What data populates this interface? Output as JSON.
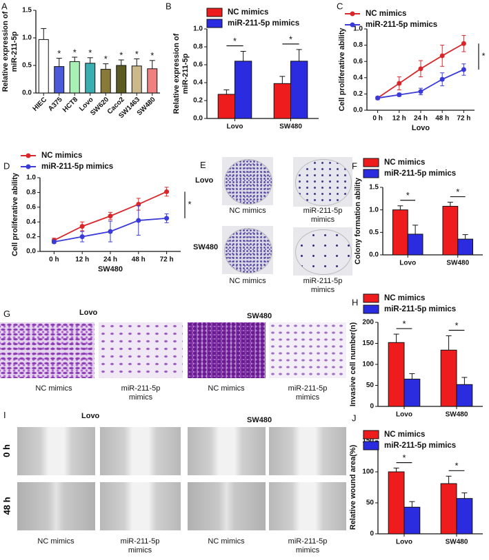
{
  "chart_data": [
    {
      "panel": "A",
      "type": "bar",
      "ylabel": [
        "Relative expression of",
        "miR-211-5p"
      ],
      "categories": [
        "HIEC",
        "A375",
        "HCT8",
        "Lovo",
        "SW620",
        "Caco2",
        "SW1463",
        "SW480"
      ],
      "values": [
        0.97,
        0.48,
        0.57,
        0.54,
        0.43,
        0.5,
        0.49,
        0.44
      ],
      "errors": [
        0.2,
        0.15,
        0.08,
        0.1,
        0.1,
        0.1,
        0.13,
        0.15
      ],
      "colors": [
        "#ffffff",
        "#4a5ad8",
        "#a8f0b4",
        "#3aaeb0",
        "#8a7a3a",
        "#5c5c22",
        "#cbb98c",
        "#f08080"
      ],
      "annotations": [
        null,
        "*",
        "*",
        "*",
        "*",
        "*",
        "*",
        "*"
      ],
      "ylim": [
        0,
        1.5
      ],
      "yticks": [
        {
          "value": 0,
          "label": "0.0"
        },
        0.5,
        {
          "value": 1,
          "label": "1.0"
        },
        1.5
      ]
    },
    {
      "panel": "B",
      "type": "grouped-bar",
      "ylabel": [
        "Relative expression of",
        "miR-211-5p"
      ],
      "categories": [
        "Lovo",
        "SW480"
      ],
      "series": [
        {
          "name": "NC mimics",
          "color": "#ee1c1c",
          "values": [
            0.27,
            0.39
          ],
          "errors": [
            0.05,
            0.08
          ]
        },
        {
          "name": "miR-211-5p mimics",
          "color": "#2b2be0",
          "values": [
            0.64,
            0.64
          ],
          "errors": [
            0.11,
            0.13
          ]
        }
      ],
      "annotations": [
        "*",
        "*"
      ],
      "ylim": [
        0,
        1
      ],
      "yticks": [
        {
          "value": 0,
          "label": "0.0"
        },
        0.2,
        0.4,
        0.6,
        0.8,
        {
          "value": 1,
          "label": "1.0"
        }
      ]
    },
    {
      "panel": "C",
      "type": "line",
      "ylabel": "Cell proliferative ability",
      "xlabel": "Lovo",
      "categories": [
        "0 h",
        "12 h",
        "24 h",
        "48 h",
        "72 h"
      ],
      "series": [
        {
          "name": "NC mimics",
          "color": "#d8262a",
          "values": [
            0.15,
            0.33,
            0.51,
            0.67,
            0.82
          ],
          "errors": [
            0.02,
            0.08,
            0.1,
            0.13,
            0.1
          ]
        },
        {
          "name": "miR-211-5p mimics",
          "color": "#3a3ad8",
          "values": [
            0.15,
            0.19,
            0.23,
            0.38,
            0.5
          ],
          "errors": [
            0.02,
            0.02,
            0.04,
            0.08,
            0.07
          ]
        }
      ],
      "annotation": "*",
      "ylim": [
        0,
        1
      ],
      "yticks": [
        {
          "value": 0,
          "label": "0.0"
        },
        0.2,
        0.4,
        0.6,
        0.8,
        {
          "value": 1,
          "label": "1.0"
        }
      ]
    },
    {
      "panel": "D",
      "type": "line",
      "ylabel": "Cell proliferative ability",
      "xlabel": "SW480",
      "categories": [
        "0 h",
        "12 h",
        "24 h",
        "48 h",
        "72 h"
      ],
      "series": [
        {
          "name": "NC mimics",
          "color": "#d8262a",
          "values": [
            0.15,
            0.34,
            0.48,
            0.64,
            0.81
          ],
          "errors": [
            0.03,
            0.06,
            0.05,
            0.08,
            0.06
          ]
        },
        {
          "name": "miR-211-5p mimics",
          "color": "#3a3ad8",
          "values": [
            0.13,
            0.2,
            0.27,
            0.42,
            0.45
          ],
          "errors": [
            0.02,
            0.07,
            0.14,
            0.2,
            0.06
          ]
        }
      ],
      "annotation": "*",
      "ylim": [
        0,
        1
      ],
      "yticks": [
        {
          "value": 0,
          "label": "0.0"
        },
        0.2,
        0.4,
        0.6,
        0.8,
        {
          "value": 1,
          "label": "1.0"
        }
      ]
    },
    {
      "panel": "F",
      "type": "grouped-bar",
      "ylabel": "Colony formation ability",
      "categories": [
        "Lovo",
        "SW480"
      ],
      "series": [
        {
          "name": "NC mimics",
          "color": "#ee1c1c",
          "values": [
            1.0,
            1.08
          ],
          "errors": [
            0.09,
            0.09
          ]
        },
        {
          "name": "miR-211-5p mimics",
          "color": "#2b2be0",
          "values": [
            0.46,
            0.35
          ],
          "errors": [
            0.2,
            0.1
          ]
        }
      ],
      "annotations": [
        "*",
        "*"
      ],
      "ylim": [
        0,
        1.5
      ],
      "yticks": [
        {
          "value": 0,
          "label": "0.0"
        },
        0.5,
        {
          "value": 1,
          "label": "1.0"
        },
        1.5
      ]
    },
    {
      "panel": "H",
      "type": "grouped-bar",
      "ylabel": "Invasive cell number(n)",
      "categories": [
        "Lovo",
        "SW480"
      ],
      "series": [
        {
          "name": "NC mimics",
          "color": "#ee1c1c",
          "values": [
            152,
            134
          ],
          "errors": [
            20,
            34
          ]
        },
        {
          "name": "miR-211-5p mimics",
          "color": "#2b2be0",
          "values": [
            65,
            52
          ],
          "errors": [
            13,
            17
          ]
        }
      ],
      "annotations": [
        "*",
        "*"
      ],
      "ylim": [
        0,
        200
      ],
      "yticks": [
        0,
        50,
        100,
        150,
        200
      ]
    },
    {
      "panel": "J",
      "type": "grouped-bar",
      "ylabel": "Relative wound area(%)",
      "categories": [
        "Lovo",
        "SW480"
      ],
      "series": [
        {
          "name": "NC mimics",
          "color": "#ee1c1c",
          "values": [
            100,
            81
          ],
          "errors": [
            6,
            12
          ]
        },
        {
          "name": "miR-211-5p mimics",
          "color": "#2b2be0",
          "values": [
            43,
            57
          ],
          "errors": [
            9,
            9
          ]
        }
      ],
      "annotations": [
        "*",
        "*"
      ],
      "ylim": [
        0,
        150
      ],
      "yticks": [
        0,
        50,
        100,
        150
      ]
    }
  ],
  "images": [
    {
      "panel": "E",
      "rows": [
        "Lovo",
        "SW480"
      ],
      "captions": [
        "NC mimics",
        "miR-211-5p mimics",
        "NC mimics",
        "miR-211-5p mimics"
      ]
    },
    {
      "panel": "G",
      "groups": [
        "Lovo",
        "SW480"
      ],
      "captions": [
        "NC mimics",
        "miR-211-5p mimics",
        "NC mimics",
        "miR-211-5p mimics"
      ]
    },
    {
      "panel": "I",
      "groups": [
        "Lovo",
        "SW480"
      ],
      "rows": [
        "0 h",
        "48 h"
      ],
      "captions": [
        "NC mimics",
        "miR-211-5p mimics",
        "NC mimics",
        "miR-211-5p mimics"
      ]
    }
  ]
}
